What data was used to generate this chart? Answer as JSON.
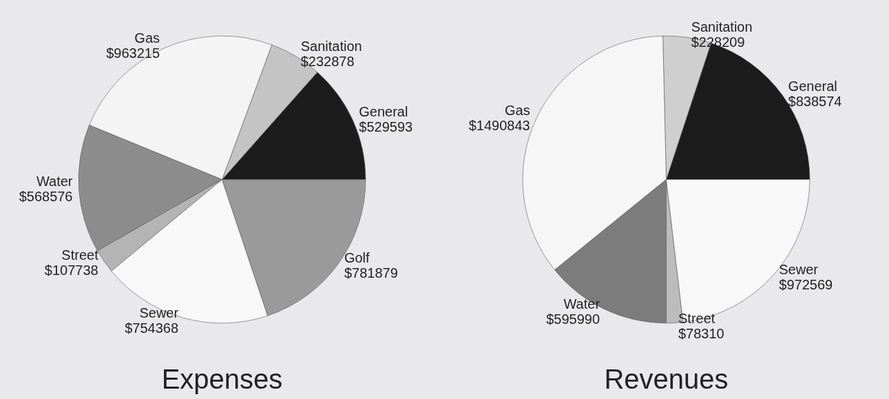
{
  "chart_data": [
    {
      "type": "pie",
      "title": "Expenses",
      "categories": [
        "General",
        "Sanitation",
        "Gas",
        "Water",
        "Street",
        "Sewer",
        "Golf"
      ],
      "values": [
        529593,
        232878,
        963215,
        568576,
        107738,
        754368,
        781879
      ],
      "value_labels": [
        "$529593",
        "$232878",
        "$963215",
        "$568576",
        "$107738",
        "$754368",
        "$781879"
      ],
      "colors": [
        "#1c1c1c",
        "#c4c4c4",
        "#f4f4f4",
        "#8c8c8c",
        "#b4b4b4",
        "#f8f8f8",
        "#9a9a9a"
      ]
    },
    {
      "type": "pie",
      "title": "Revenues",
      "categories": [
        "General",
        "Sanitation",
        "Gas",
        "Water",
        "Street",
        "Sewer"
      ],
      "values": [
        838574,
        228209,
        1490843,
        595990,
        78310,
        972569
      ],
      "value_labels": [
        "$838574",
        "$228209",
        "$1490843",
        "$595990",
        "$78310",
        "$972569"
      ],
      "colors": [
        "#1c1c1c",
        "#cfcfcf",
        "#f6f6f6",
        "#7c7c7c",
        "#bcbcbc",
        "#f8f8f8"
      ]
    }
  ]
}
